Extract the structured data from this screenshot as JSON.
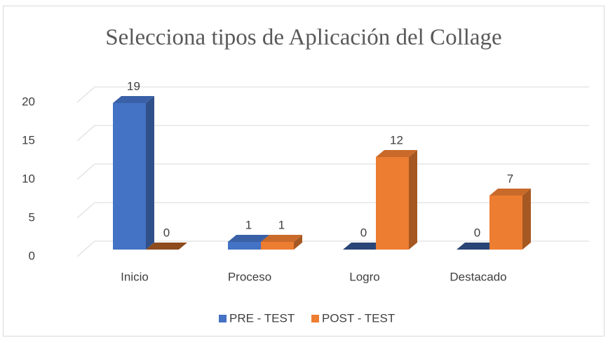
{
  "chart_data": {
    "type": "bar3d",
    "title": "Selecciona tipos de Aplicación del Collage",
    "categories": [
      "Inicio",
      "Proceso",
      "Logro",
      "Destacado"
    ],
    "series": [
      {
        "name": "PRE - TEST",
        "color": "#4472c4",
        "values": [
          19,
          1,
          0,
          0
        ]
      },
      {
        "name": "POST - TEST",
        "color": "#ed7d31",
        "values": [
          0,
          1,
          12,
          7
        ]
      }
    ],
    "ylim": [
      0,
      20
    ],
    "yticks": [
      0,
      5,
      10,
      15,
      20
    ],
    "grid": true,
    "legend": "bottom"
  }
}
